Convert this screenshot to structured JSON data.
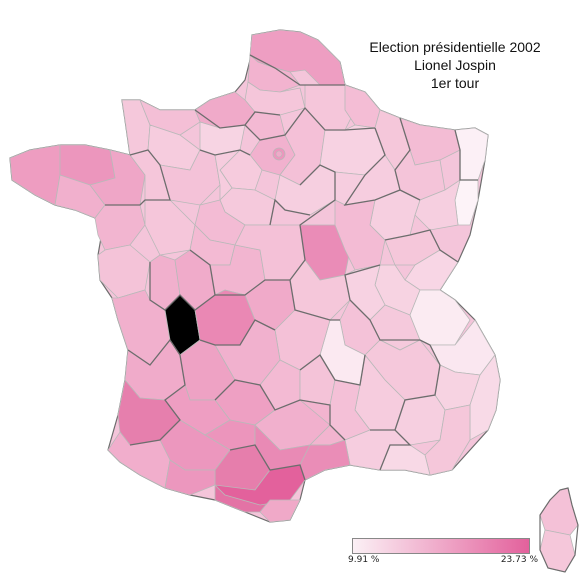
{
  "title": {
    "line1": "Election présidentielle 2002",
    "line2": "Lionel Jospin",
    "line3": "1er tour"
  },
  "legend": {
    "min_label": "9.91 %",
    "max_label": "23.73 %",
    "min_value": 9.91,
    "max_value": 23.73,
    "color_low": "#fbf0f5",
    "color_high": "#e3619c"
  },
  "colors": {
    "border_department": "#b9b9b9",
    "border_region": "#6d6d6d",
    "background": "#ffffff"
  }
}
